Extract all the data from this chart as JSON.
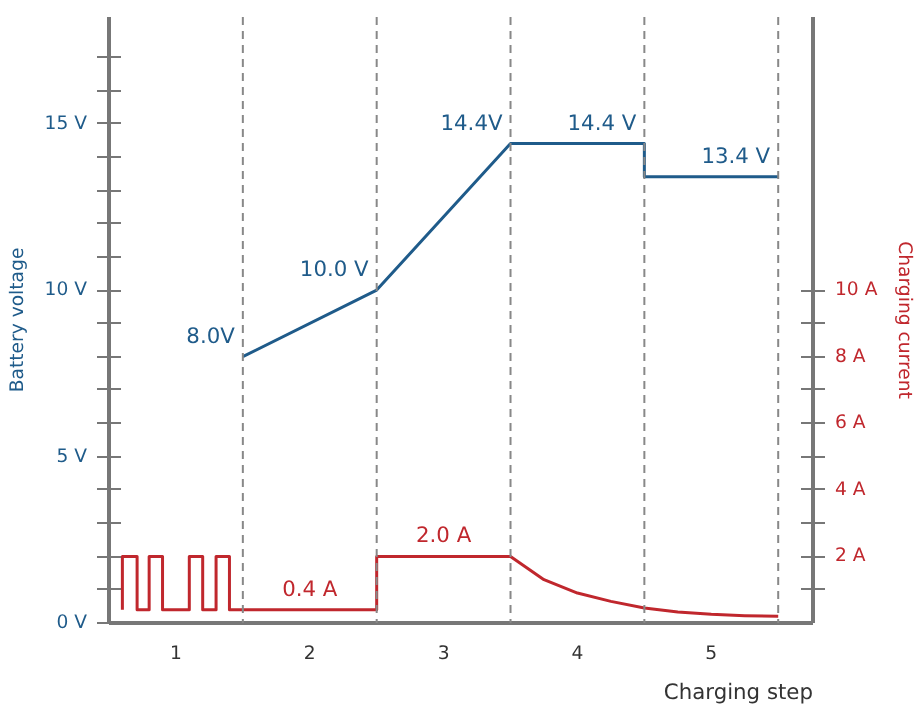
{
  "chart_data": {
    "type": "line",
    "xlabel": "Charging step",
    "ylabel": "Battery voltage",
    "y2label": "Charging current",
    "series": [
      {
        "color": "#1f5b8a",
        "x": [
          1.5,
          2.5,
          3.5,
          4.5,
          4.5,
          5.5
        ],
        "values": [
          8.0,
          10.0,
          14.4,
          14.4,
          13.4,
          13.4
        ]
      },
      {
        "color": "#c0272d",
        "axis": "y2",
        "x": [
          0.6,
          0.6,
          0.71,
          0.71,
          0.8,
          0.8,
          0.9,
          0.9,
          1.1,
          1.1,
          1.2,
          1.2,
          1.3,
          1.3,
          1.4,
          1.4,
          2.5,
          2.5,
          3.5,
          3.75,
          4.0,
          4.25,
          4.5,
          4.75,
          5.0,
          5.25,
          5.5
        ],
        "values": [
          0.4,
          2.0,
          2.0,
          0.4,
          0.4,
          2.0,
          2.0,
          0.4,
          0.4,
          2.0,
          2.0,
          0.4,
          0.4,
          2.0,
          2.0,
          0.4,
          0.4,
          2.0,
          2.0,
          1.3,
          0.9,
          0.65,
          0.45,
          0.33,
          0.26,
          0.22,
          0.2
        ]
      }
    ],
    "xlim": [
      0.5,
      5.76
    ],
    "xticks": [
      1,
      2,
      3,
      4,
      5
    ],
    "ylim": [
      0,
      18.2
    ],
    "yticks": [
      {
        "value": 0,
        "label": "0 V"
      },
      {
        "value": 1,
        "label": null
      },
      {
        "value": 2,
        "label": null
      },
      {
        "value": 3,
        "label": null
      },
      {
        "value": 4,
        "label": null
      },
      {
        "value": 5,
        "label": "5 V"
      },
      {
        "value": 6,
        "label": null
      },
      {
        "value": 7,
        "label": null
      },
      {
        "value": 8,
        "label": null
      },
      {
        "value": 9,
        "label": null
      },
      {
        "value": 10,
        "label": "10 V"
      },
      {
        "value": 11,
        "label": null
      },
      {
        "value": 12,
        "label": null
      },
      {
        "value": 13,
        "label": null
      },
      {
        "value": 14,
        "label": null
      },
      {
        "value": 15,
        "label": "15 V"
      },
      {
        "value": 16,
        "label": null
      },
      {
        "value": 17,
        "label": null
      }
    ],
    "y2lim": [
      0,
      18.2
    ],
    "y2ticks": [
      {
        "value": 1,
        "label": null
      },
      {
        "value": 2,
        "label": "2 A"
      },
      {
        "value": 3,
        "label": null
      },
      {
        "value": 4,
        "label": "4 A"
      },
      {
        "value": 5,
        "label": null
      },
      {
        "value": 6,
        "label": "6 A"
      },
      {
        "value": 7,
        "label": null
      },
      {
        "value": 8,
        "label": "8 A"
      },
      {
        "value": 9,
        "label": null
      },
      {
        "value": 10,
        "label": "10 A"
      }
    ],
    "ref_lines": [
      {
        "axis": "x",
        "value": 1.5,
        "color": "#888888",
        "line_style": "dashed"
      },
      {
        "axis": "x",
        "value": 2.5,
        "color": "#888888",
        "line_style": "dashed"
      },
      {
        "axis": "x",
        "value": 3.5,
        "color": "#888888",
        "line_style": "dashed"
      },
      {
        "axis": "x",
        "value": 4.5,
        "color": "#888888",
        "line_style": "dashed"
      },
      {
        "axis": "x",
        "value": 5.5,
        "color": "#888888",
        "line_style": "dashed"
      }
    ],
    "annotations": [
      {
        "text": "8.0V",
        "x": 1.5,
        "y": 8.0
      },
      {
        "text": "10.0 V",
        "x": 2.5,
        "y": 10.0
      },
      {
        "text": "14.4V",
        "x": 3.5,
        "y": 14.4
      },
      {
        "text": "14.4 V",
        "x": 4.5,
        "y": 14.4
      },
      {
        "text": "13.4 V",
        "x": 5.5,
        "y": 13.4
      },
      {
        "text": "0.4 A",
        "x": 2.0,
        "y": 0.4
      },
      {
        "text": "2.0 A",
        "x": 3.0,
        "y": 2.0
      }
    ],
    "grid": false,
    "line_style": "solid",
    "marker": "none"
  }
}
